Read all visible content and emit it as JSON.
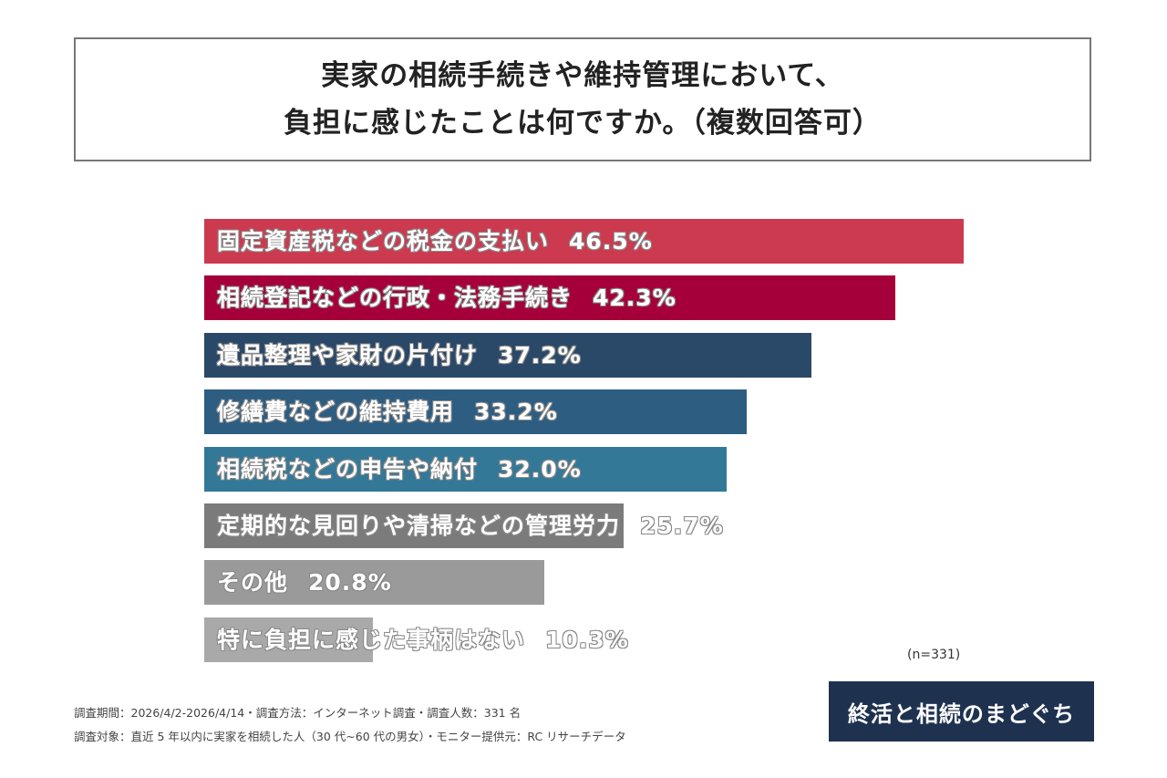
{
  "chart_data": {
    "type": "bar",
    "orientation": "horizontal",
    "title": [
      "実家の相続手続きや維持管理において、",
      "負担に感じたことは何ですか。（複数回答可）"
    ],
    "xlim": [
      0,
      50
    ],
    "unit": "%",
    "categories": [
      "固定資産税などの税金の支払い",
      "相続登記などの行政・法務手続き",
      "遺品整理や家財の片付け",
      "修繕費などの維持費用",
      "相続税などの申告や納付",
      "定期的な見回りや清掃などの管理労力",
      "その他",
      "特に負担に感じた事柄はない"
    ],
    "values": [
      46.5,
      42.3,
      37.2,
      33.2,
      32.0,
      25.7,
      20.8,
      10.3
    ],
    "labels": [
      "46.5%",
      "42.3%",
      "37.2%",
      "33.2%",
      "32.0%",
      "25.7%",
      "20.8%",
      "10.3%"
    ],
    "colors": [
      "#cc3a4f",
      "#a5003a",
      "#2a4868",
      "#2e5d82",
      "#347898",
      "#7b7b7b",
      "#9a9a9a",
      "#a9a9a9"
    ],
    "n_label": "(n=331)"
  },
  "footer": {
    "line1": "調査期間：2026/4/2-2026/4/14・調査方法：インターネット調査・調査人数：331 名",
    "line2": "調査対象：直近 5 年以内に実家を相続した人（30 代~60 代の男女）・モニター提供元：RC リサーチデータ"
  },
  "logo": "終活と相続のまどぐち"
}
